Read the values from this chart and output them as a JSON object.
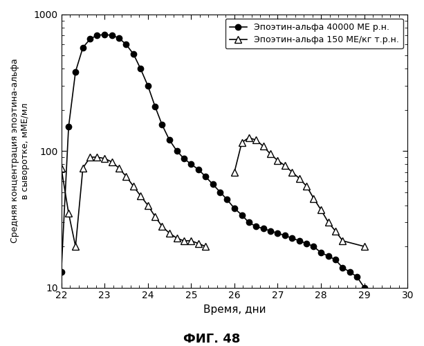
{
  "series1_label": "Эпоэтин-альфа 40000 МЕ р.н.",
  "series2_label": "Эпоэтин-альфа 150 МЕ/кг т.р.н.",
  "series1_x": [
    22.0,
    22.17,
    22.33,
    22.5,
    22.67,
    22.83,
    23.0,
    23.17,
    23.33,
    23.5,
    23.67,
    23.83,
    24.0,
    24.17,
    24.33,
    24.5,
    24.67,
    24.83,
    25.0,
    25.17,
    25.33,
    25.5,
    25.67,
    25.83,
    26.0,
    26.17,
    26.33,
    26.5,
    26.67,
    26.83,
    27.0,
    27.17,
    27.33,
    27.5,
    27.67,
    27.83,
    28.0,
    28.17,
    28.33,
    28.5,
    28.67,
    28.83,
    29.0
  ],
  "series1_y": [
    13,
    150,
    380,
    570,
    660,
    700,
    710,
    700,
    670,
    600,
    510,
    400,
    300,
    210,
    155,
    120,
    100,
    88,
    80,
    73,
    65,
    57,
    50,
    44,
    38,
    34,
    30,
    28,
    27,
    26,
    25,
    24,
    23,
    22,
    21,
    20,
    18,
    17,
    16,
    14,
    13,
    12,
    10
  ],
  "series2_seg1_x": [
    22.0,
    22.17,
    22.33,
    22.5,
    22.67,
    22.83,
    23.0,
    23.17,
    23.33,
    23.5,
    23.67,
    23.83,
    24.0,
    24.17,
    24.33,
    24.5,
    24.67,
    24.83,
    25.0,
    25.17,
    25.33
  ],
  "series2_seg1_y": [
    75,
    35,
    20,
    75,
    90,
    90,
    88,
    83,
    75,
    65,
    55,
    47,
    40,
    33,
    28,
    25,
    23,
    22,
    22,
    21,
    20
  ],
  "series2_seg2_x": [
    26.0,
    26.17,
    26.33,
    26.5,
    26.67,
    26.83,
    27.0,
    27.17,
    27.33,
    27.5,
    27.67,
    27.83,
    28.0,
    28.17,
    28.33,
    28.5,
    29.0
  ],
  "series2_seg2_y": [
    70,
    115,
    125,
    120,
    108,
    95,
    85,
    78,
    70,
    63,
    55,
    45,
    37,
    30,
    26,
    22,
    20
  ],
  "xlabel": "Время, дни",
  "ylabel": "Средняя концентрация эпоэтина-альфа\nв сыворотке, мМЕ/мл",
  "xlim": [
    22,
    30
  ],
  "ylim": [
    10,
    1000
  ],
  "xticks": [
    22,
    23,
    24,
    25,
    26,
    27,
    28,
    29,
    30
  ],
  "figure_label": "ФИГ. 48",
  "background_color": "#ffffff"
}
